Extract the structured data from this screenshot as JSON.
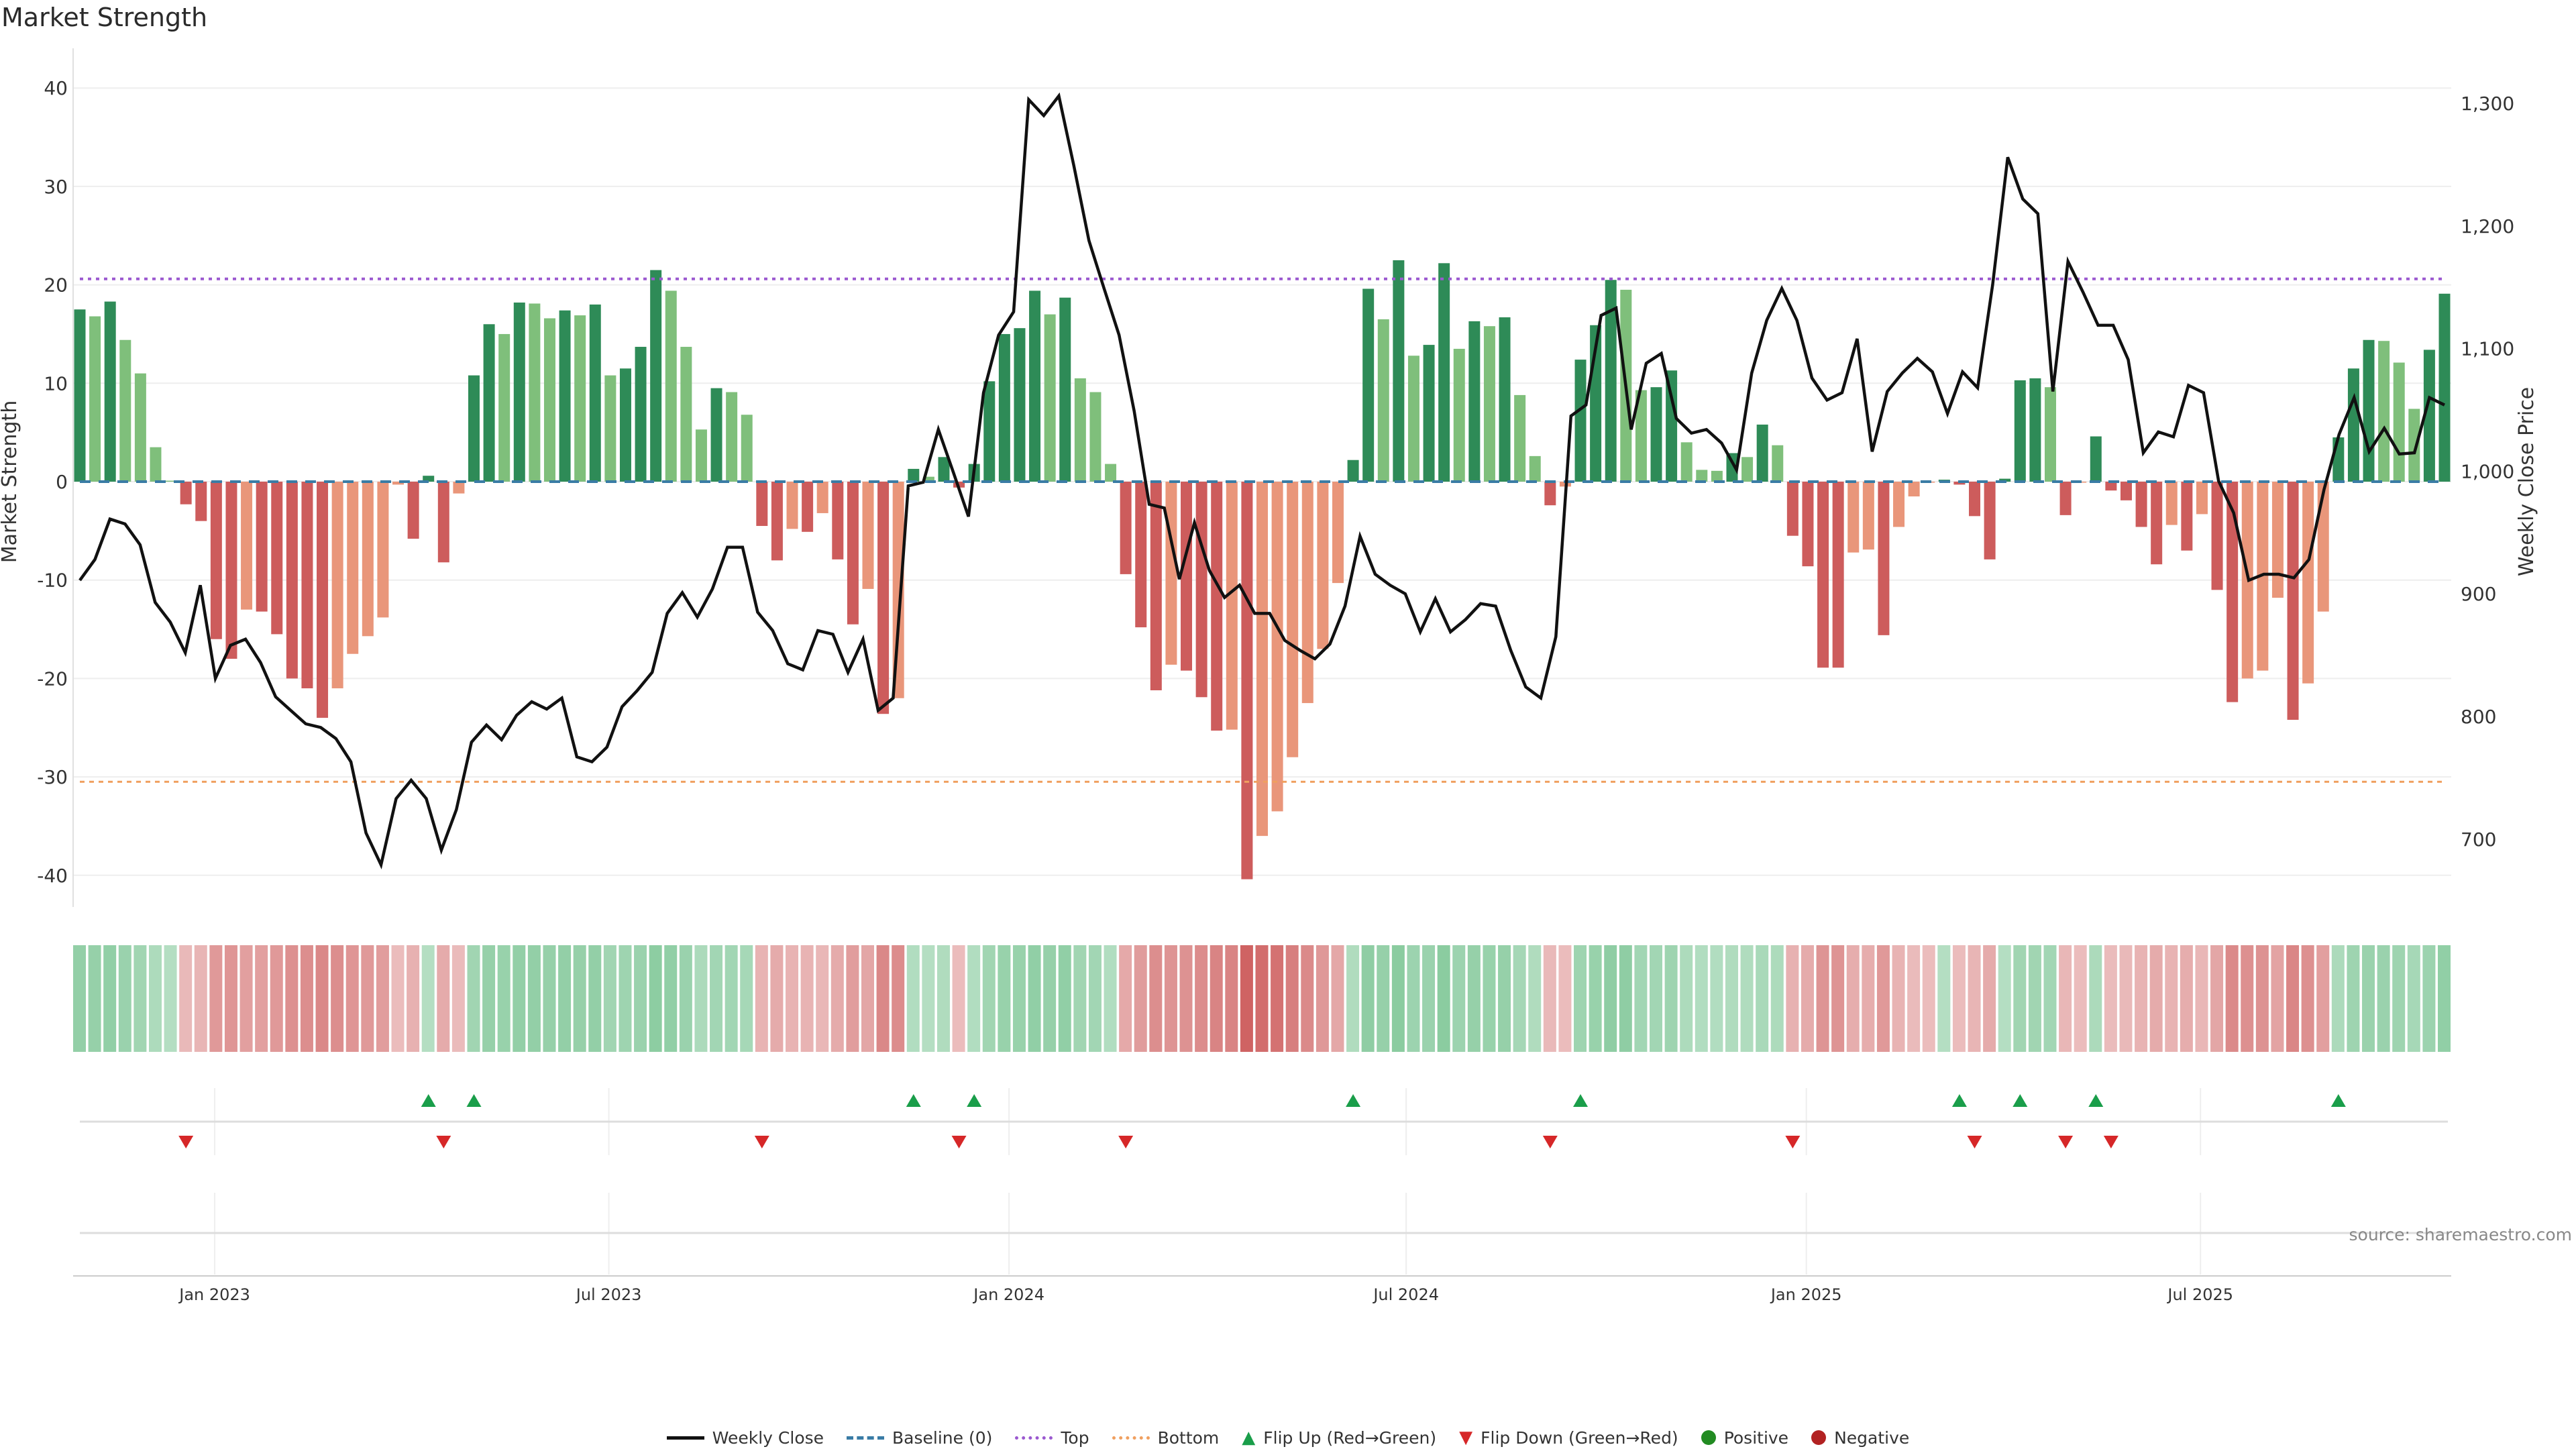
{
  "title": "Market Strength",
  "source": "source: sharemaestro.com",
  "legend": {
    "weekly_close": "Weekly Close",
    "baseline": "Baseline (0)",
    "top": "Top",
    "bottom": "Bottom",
    "flip_up": "Flip Up (Red→Green)",
    "flip_down": "Flip Down (Green→Red)",
    "positive": "Positive",
    "negative": "Negative"
  },
  "colors": {
    "green_strong": "#2e8b57",
    "green_weak": "#7fbf7b",
    "red_strong": "#cd5c5c",
    "red_weak": "#e9967a",
    "line": "#111111",
    "baseline": "#3a7ca5",
    "top": "#9b59d0",
    "bottom": "#f0a060",
    "flip_up": "#1a9e4a",
    "flip_down": "#d62728",
    "positive": "#228b22",
    "negative": "#b22222"
  },
  "chart_data": {
    "type": "bar+line",
    "title": "Market Strength",
    "ylabel": "Market Strength",
    "y2label": "Weekly Close Price",
    "ylim": [
      -44,
      43
    ],
    "y2lim": [
      655,
      1325
    ],
    "yticks": [
      "40",
      "30",
      "20",
      "10",
      "0",
      "-10",
      "-20",
      "-30",
      "-40"
    ],
    "yticks_values": [
      40,
      30,
      20,
      10,
      0,
      -10,
      -20,
      -30,
      -40
    ],
    "y2ticks": [
      "1,300",
      "1,200",
      "1,100",
      "1,000",
      "900",
      "800",
      "700"
    ],
    "y2ticks_values": [
      1300,
      1200,
      1100,
      1000,
      900,
      800,
      700
    ],
    "top_level": 20.6,
    "bottom_level": -30.5,
    "baseline": 0,
    "xticks": [
      {
        "label": "Jan 2023",
        "week": 8.9
      },
      {
        "label": "Jul 2023",
        "week": 34.9
      },
      {
        "label": "Jan 2024",
        "week": 61.3
      },
      {
        "label": "Jul 2024",
        "week": 87.5
      },
      {
        "label": "Jan 2025",
        "week": 113.9
      },
      {
        "label": "Jul 2025",
        "week": 139.9
      }
    ],
    "strength": [
      17.5,
      16.8,
      18.3,
      14.4,
      11,
      3.5,
      0.1,
      -2.3,
      -4,
      -16,
      -18,
      -13,
      -13.2,
      -15.5,
      -20,
      -21,
      -24,
      -21,
      -17.5,
      -15.7,
      -13.8,
      -0.3,
      -5.8,
      0.6,
      -8.2,
      -1.2,
      10.8,
      16,
      15,
      18.2,
      18.1,
      16.6,
      17.4,
      16.9,
      18,
      10.8,
      11.5,
      13.7,
      21.5,
      19.4,
      13.7,
      5.3,
      9.5,
      9.1,
      6.8,
      -4.5,
      -8,
      -4.8,
      -5.1,
      -3.2,
      -7.9,
      -14.5,
      -10.9,
      -23.6,
      -22,
      1.3,
      0.5,
      2.5,
      -0.6,
      1.8,
      10.2,
      15,
      15.6,
      19.4,
      17,
      18.7,
      10.5,
      9.1,
      1.8,
      -9.4,
      -14.8,
      -21.2,
      -18.6,
      -19.2,
      -21.9,
      -25.3,
      -25.2,
      -40.4,
      -36,
      -33.5,
      -28,
      -22.5,
      -17,
      -10.3,
      2.2,
      19.6,
      16.5,
      22.5,
      12.8,
      13.9,
      22.2,
      13.5,
      16.3,
      15.8,
      16.7,
      8.8,
      2.6,
      -2.4,
      -0.5,
      12.4,
      15.9,
      20.5,
      19.5,
      9.3,
      9.6,
      11.3,
      4,
      1.2,
      1.1,
      2.9,
      2.5,
      5.8,
      3.7,
      -5.5,
      -8.6,
      -18.9,
      -18.9,
      -7.2,
      -6.9,
      -15.6,
      -4.6,
      -1.5,
      -0.1,
      0.2,
      -0.3,
      -3.5,
      -7.9,
      0.3,
      10.3,
      10.5,
      9.6,
      -3.4,
      -0.1,
      4.6,
      -0.9,
      -1.9,
      -4.6,
      -8.4,
      -4.4,
      -7,
      -3.3,
      -11,
      -22.4,
      -20,
      -19.2,
      -11.8,
      -24.2,
      -20.5,
      -13.2,
      4.5,
      11.5,
      14.4,
      14.3,
      12.1,
      7.4,
      13.4,
      19.1
    ],
    "strength_shade": "GgGgggg RRRRrRRRRRrrrrrRGRrGGgGggGgGgGGGgggGggRRrRrRRrRrGgGRGGGGGgGgggRRRrRRRrRrrrrrrGGgGgGGgGgGggRrGGGggGGgggGgGgRRRRrrRrrrGRRRGGGgRrGRRRRrRrRRrrrRrrGGGgggGG",
    "weekly_close": [
      911,
      928,
      961,
      957,
      940,
      893,
      877,
      852,
      907,
      831,
      858,
      863,
      844,
      816,
      805,
      794,
      791,
      782,
      763,
      705,
      679,
      733,
      748,
      733,
      691,
      724,
      779,
      793,
      781,
      801,
      812,
      806,
      815,
      767,
      763,
      775,
      808,
      821,
      836,
      884,
      901,
      881,
      904,
      938,
      938,
      885,
      870,
      843,
      838,
      870,
      867,
      836,
      863,
      805,
      815,
      988,
      991,
      1034,
      999,
      963,
      1064,
      1111,
      1130,
      1303,
      1290,
      1306,
      1249,
      1188,
      1149,
      1111,
      1049,
      973,
      970,
      912,
      958,
      919,
      897,
      907,
      884,
      884,
      862,
      854,
      847,
      859,
      890,
      947,
      916,
      907,
      900,
      869,
      896,
      869,
      879,
      892,
      890,
      854,
      824,
      815,
      865,
      1045,
      1054,
      1127,
      1133,
      1034,
      1088,
      1096,
      1043,
      1031,
      1034,
      1023,
      1001,
      1080,
      1123,
      1149,
      1123,
      1076,
      1058,
      1064,
      1108,
      1016,
      1065,
      1080,
      1092,
      1081,
      1047,
      1081,
      1068,
      1152,
      1256,
      1222,
      1210,
      1065,
      1171,
      1146,
      1119,
      1119,
      1091,
      1015,
      1032,
      1028,
      1070,
      1064,
      992,
      966,
      911,
      916,
      916,
      913,
      928,
      985,
      1030,
      1060,
      1016,
      1035,
      1014,
      1015,
      1060,
      1054
    ],
    "flip_up_weeks": [
      23,
      26,
      55,
      59,
      84,
      99,
      124,
      128,
      133,
      149
    ],
    "flip_down_weeks": [
      7,
      24,
      45,
      58,
      69,
      97,
      113,
      125,
      131,
      134
    ],
    "legend_position": "bottom"
  }
}
